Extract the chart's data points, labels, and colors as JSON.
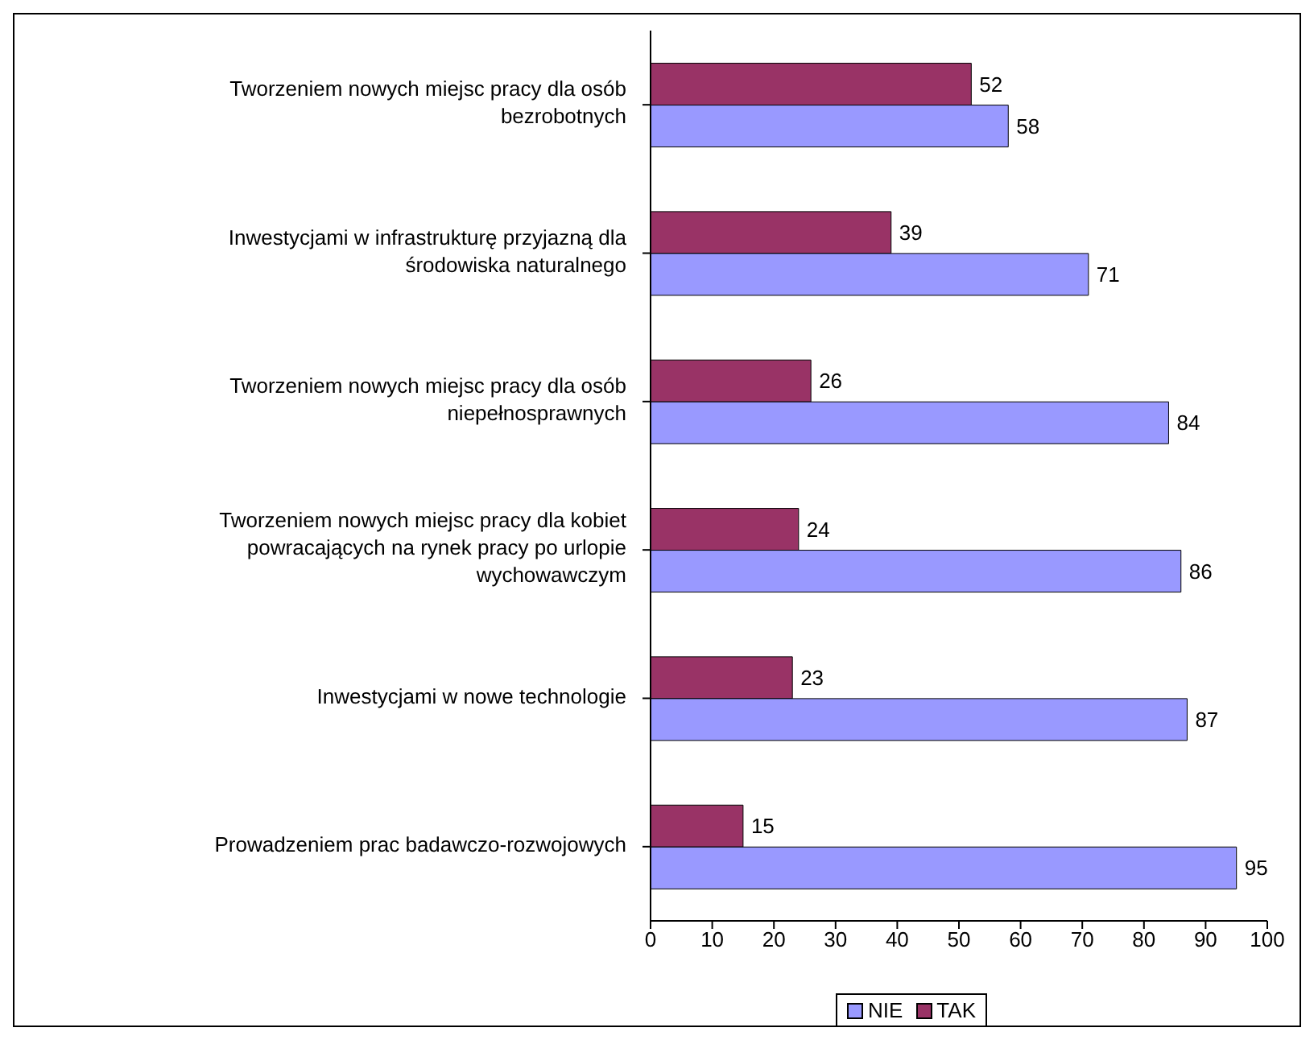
{
  "chart_data": {
    "type": "bar",
    "orientation": "horizontal",
    "categories": [
      "Tworzeniem nowych miejsc pracy dla osób bezrobotnych",
      "Inwestycjami w infrastrukturę przyjazną dla środowiska naturalnego",
      "Tworzeniem nowych miejsc pracy dla osób niepełnosprawnych",
      "Tworzeniem nowych miejsc pracy dla kobiet powracających na rynek pracy po urlopie wychowawczym",
      "Inwestycjami w nowe technologie",
      "Prowadzeniem prac badawczo-rozwojowych"
    ],
    "series": [
      {
        "name": "NIE",
        "color": "#9999ff",
        "values": [
          58,
          71,
          84,
          86,
          87,
          95
        ]
      },
      {
        "name": "TAK",
        "color": "#993366",
        "values": [
          52,
          39,
          26,
          24,
          23,
          15
        ]
      }
    ],
    "xlim": [
      0,
      100
    ],
    "xticks": [
      0,
      10,
      20,
      30,
      40,
      50,
      60,
      70,
      80,
      90,
      100
    ],
    "data_labels": true,
    "grid": false,
    "legend": "bottom"
  }
}
